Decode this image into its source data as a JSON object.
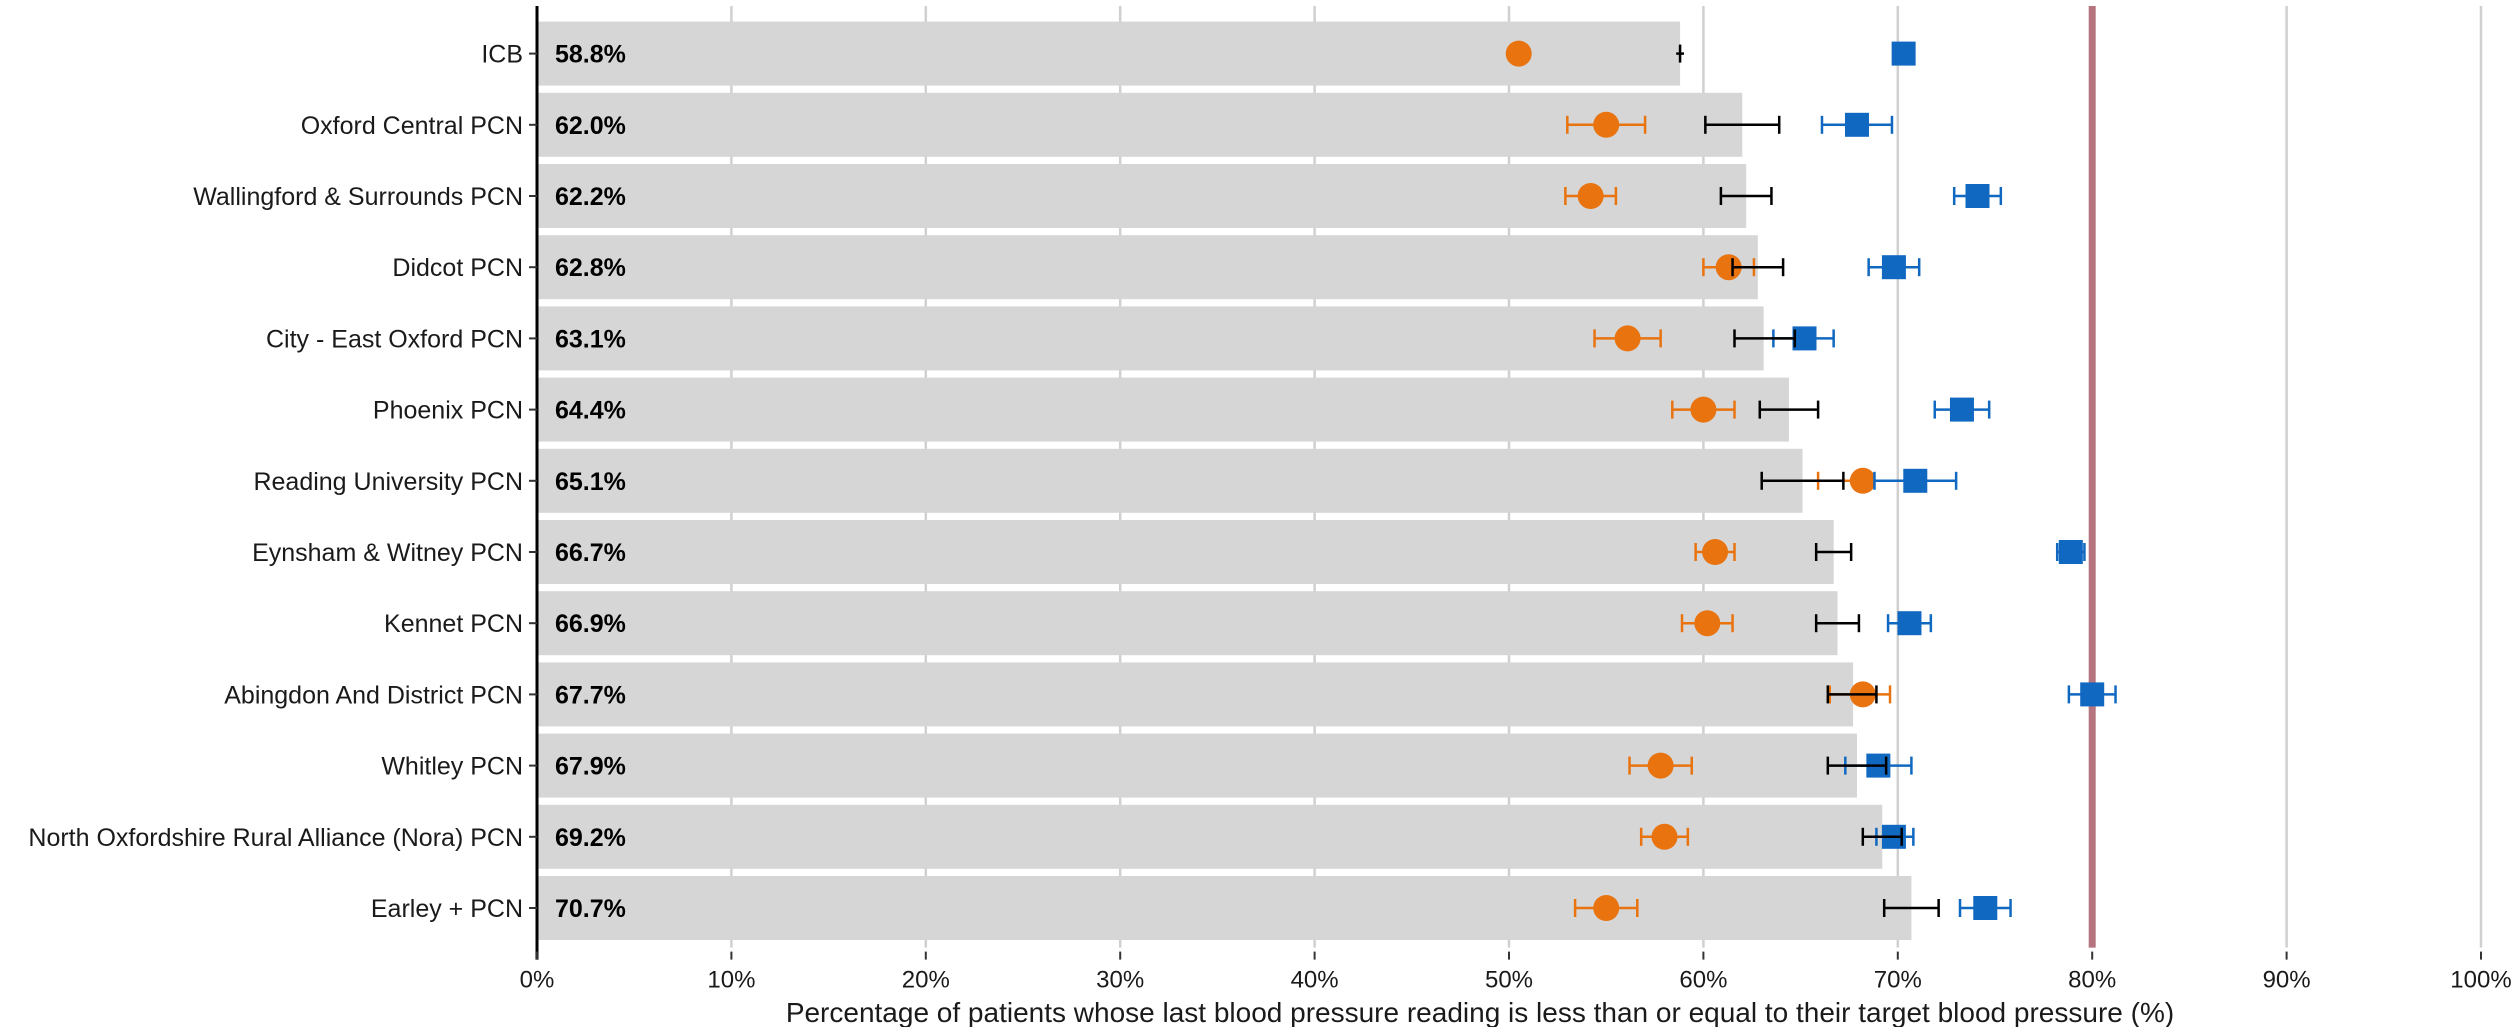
{
  "chart_data": {
    "type": "bar",
    "orientation": "horizontal",
    "xlabel": "Percentage of patients whose last blood pressure reading is less than or equal to their target blood pressure (%)",
    "ylabel": "",
    "xlim": [
      0,
      100
    ],
    "x_ticks": [
      "0%",
      "10%",
      "20%",
      "30%",
      "40%",
      "50%",
      "60%",
      "70%",
      "80%",
      "90%",
      "100%"
    ],
    "x_tick_values": [
      0,
      10,
      20,
      30,
      40,
      50,
      60,
      70,
      80,
      90,
      100
    ],
    "grid": "vertical major",
    "target_line": 80,
    "categories": [
      "ICB",
      "Oxford Central PCN",
      "Wallingford & Surrounds PCN",
      "Didcot PCN",
      "City - East Oxford PCN",
      "Phoenix PCN",
      "Reading University PCN",
      "Eynsham & Witney PCN",
      "Kennet PCN",
      "Abingdon And District PCN",
      "Whitley PCN",
      "North Oxfordshire Rural Alliance (Nora) PCN",
      "Earley + PCN"
    ],
    "value_labels": [
      "58.8%",
      "62.0%",
      "62.2%",
      "62.8%",
      "63.1%",
      "64.4%",
      "65.1%",
      "66.7%",
      "66.9%",
      "67.7%",
      "67.9%",
      "69.2%",
      "70.7%"
    ],
    "series": [
      {
        "kind": "bar",
        "values": [
          58.8,
          62.0,
          62.2,
          62.8,
          63.1,
          64.4,
          65.1,
          66.7,
          66.9,
          67.7,
          67.9,
          69.2,
          70.7
        ],
        "ci_low": [
          58.6,
          60.1,
          60.9,
          61.5,
          61.6,
          62.9,
          63.0,
          65.8,
          65.8,
          66.4,
          66.4,
          68.2,
          69.3
        ],
        "ci_high": [
          59.0,
          63.9,
          63.5,
          64.1,
          64.7,
          65.9,
          67.2,
          67.6,
          68.0,
          68.9,
          69.4,
          70.2,
          72.1
        ],
        "color": "#d6d6d6",
        "ci_color": "#000000"
      },
      {
        "kind": "circle",
        "values": [
          50.5,
          55.0,
          54.2,
          61.3,
          56.1,
          60.0,
          68.2,
          60.6,
          60.2,
          68.2,
          57.8,
          58.0,
          55.0
        ],
        "ci_low": [
          50.5,
          53.0,
          52.9,
          60.0,
          54.4,
          58.4,
          65.9,
          59.6,
          58.9,
          66.5,
          56.2,
          56.8,
          53.4
        ],
        "ci_high": [
          50.5,
          57.0,
          55.5,
          62.6,
          57.8,
          61.6,
          70.4,
          61.6,
          61.5,
          69.6,
          59.4,
          59.2,
          56.6
        ],
        "color": "#e8730f"
      },
      {
        "kind": "square",
        "values": [
          70.3,
          67.9,
          74.1,
          69.8,
          65.2,
          73.3,
          70.9,
          78.9,
          70.6,
          80.0,
          69.0,
          69.8,
          74.5
        ],
        "ci_low": [
          70.3,
          66.1,
          72.9,
          68.5,
          63.6,
          71.9,
          68.8,
          78.2,
          69.5,
          78.8,
          67.3,
          68.9,
          73.2
        ],
        "ci_high": [
          70.3,
          69.7,
          75.3,
          71.1,
          66.7,
          74.7,
          73.0,
          79.6,
          71.7,
          81.2,
          70.7,
          70.8,
          75.8
        ],
        "color": "#1068c0"
      }
    ],
    "colors": {
      "bar": "#d6d6d6",
      "bar_ci": "#000000",
      "circle": "#e8730f",
      "square": "#1068c0",
      "target_line": "#b5747e",
      "gridline": "#d0d0d0",
      "axis": "#000000"
    }
  }
}
